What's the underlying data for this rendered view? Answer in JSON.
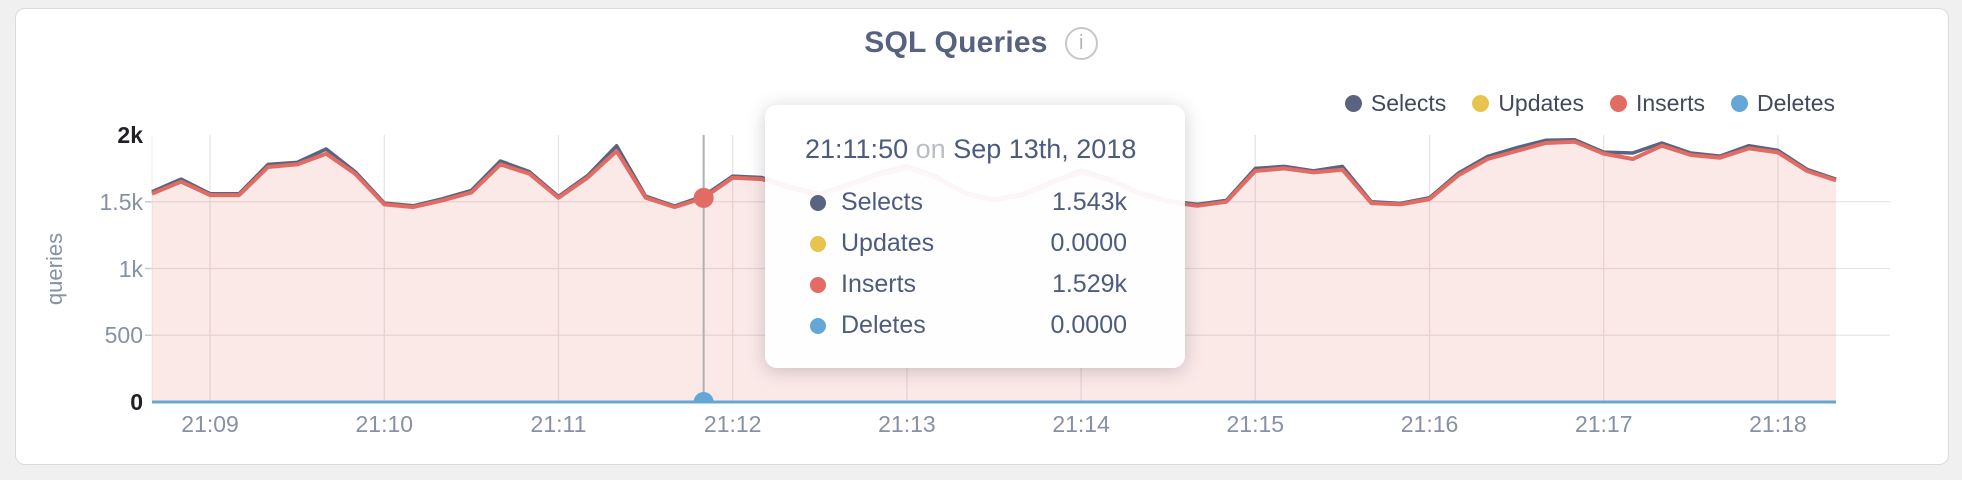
{
  "window": {
    "background": "#f0f0f1",
    "card_background": "#ffffff",
    "card_border": "#dbdbdb"
  },
  "header": {
    "title": "SQL Queries",
    "info_glyph": "i"
  },
  "legend": {
    "items": [
      {
        "label": "Selects",
        "color": "#596481"
      },
      {
        "label": "Updates",
        "color": "#e8c44f"
      },
      {
        "label": "Inserts",
        "color": "#e26b64"
      },
      {
        "label": "Deletes",
        "color": "#64a7d6"
      }
    ]
  },
  "tooltip": {
    "time": "21:11:50",
    "preposition": "on",
    "date": "Sep 13th, 2018",
    "rows": [
      {
        "label": "Selects",
        "value": "1.543k",
        "color": "#596481"
      },
      {
        "label": "Updates",
        "value": "0.0000",
        "color": "#e8c44f"
      },
      {
        "label": "Inserts",
        "value": "1.529k",
        "color": "#e26b64"
      },
      {
        "label": "Deletes",
        "value": "0.0000",
        "color": "#64a7d6"
      }
    ]
  },
  "chart_data": {
    "type": "area",
    "title": "SQL Queries",
    "xlabel": "",
    "ylabel": "queries",
    "ylim": [
      0,
      2000
    ],
    "grid": true,
    "legend_position": "top-right",
    "y_ticks": [
      {
        "label": "2k",
        "value": 2000,
        "strong": true
      },
      {
        "label": "1.5k",
        "value": 1500,
        "strong": false
      },
      {
        "label": "1k",
        "value": 1000,
        "strong": false
      },
      {
        "label": "500",
        "value": 500,
        "strong": false
      },
      {
        "label": "0",
        "value": 0,
        "strong": true
      }
    ],
    "x_ticks": [
      "21:09",
      "21:10",
      "21:11",
      "21:12",
      "21:13",
      "21:14",
      "21:15",
      "21:16",
      "21:17",
      "21:18"
    ],
    "x_start": "21:08:40",
    "x_step_seconds": 10,
    "series": [
      {
        "name": "Selects",
        "color": "#596481",
        "values": [
          1575,
          1670,
          1560,
          1560,
          1780,
          1795,
          1895,
          1725,
          1490,
          1470,
          1522,
          1585,
          1805,
          1725,
          1540,
          1695,
          1920,
          1542,
          1468,
          1543,
          1692,
          1682,
          1612,
          1560,
          1632,
          1715,
          1770,
          1692,
          1570,
          1518,
          1560,
          1652,
          1738,
          1672,
          1570,
          1508,
          1480,
          1510,
          1750,
          1765,
          1732,
          1765,
          1500,
          1488,
          1530,
          1715,
          1840,
          1905,
          1960,
          1965,
          1872,
          1865,
          1940,
          1865,
          1842,
          1920,
          1885,
          1742,
          1670
        ]
      },
      {
        "name": "Updates",
        "color": "#e8c44f",
        "constant": 0
      },
      {
        "name": "Inserts",
        "color": "#e26b64",
        "fill": "rgba(226,107,100,0.15)",
        "values": [
          1560,
          1650,
          1550,
          1550,
          1760,
          1780,
          1860,
          1710,
          1480,
          1460,
          1510,
          1570,
          1780,
          1710,
          1530,
          1680,
          1880,
          1530,
          1460,
          1529,
          1680,
          1670,
          1600,
          1550,
          1620,
          1700,
          1750,
          1680,
          1560,
          1510,
          1550,
          1640,
          1720,
          1660,
          1560,
          1500,
          1470,
          1500,
          1730,
          1750,
          1720,
          1740,
          1490,
          1480,
          1520,
          1700,
          1820,
          1880,
          1940,
          1950,
          1860,
          1820,
          1920,
          1850,
          1830,
          1900,
          1870,
          1730,
          1660
        ]
      },
      {
        "name": "Deletes",
        "color": "#64a7d6",
        "constant": 0
      }
    ],
    "crosshair": {
      "time": "21:11:50",
      "highlight_points": [
        {
          "series": "Inserts",
          "value": 1529
        },
        {
          "series": "Deletes",
          "value": 0
        }
      ]
    }
  }
}
